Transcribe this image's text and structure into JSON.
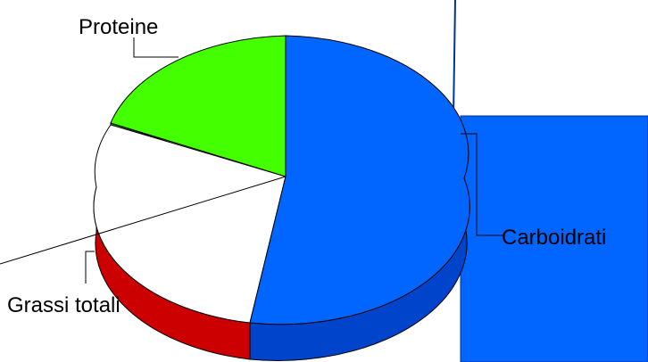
{
  "chart_data": {
    "type": "pie",
    "style": "3d-exploded",
    "slices": [
      {
        "label": "Carboidrati",
        "share": 0.55,
        "color": "#0066ff",
        "side_color": "#0044cc"
      },
      {
        "label": "Grassi totali",
        "share": 0.23,
        "color": "#ffffff",
        "side_color": "#cc0000"
      },
      {
        "label": "Proteine",
        "share": 0.22,
        "color": "#44ff00",
        "side_color": "#22aa00"
      }
    ],
    "legend": "none"
  }
}
